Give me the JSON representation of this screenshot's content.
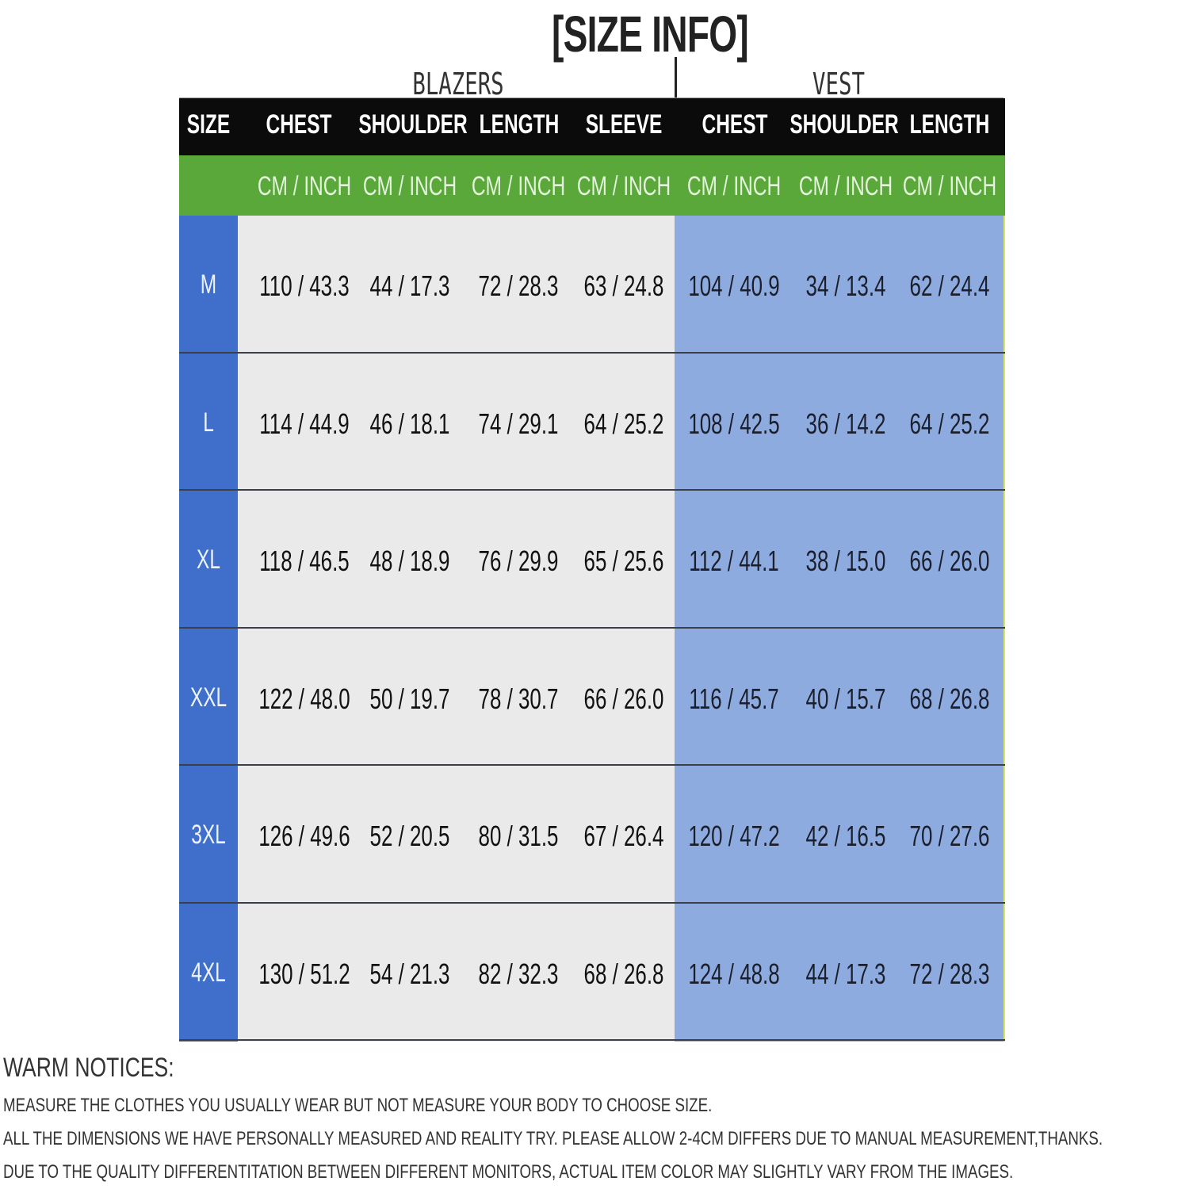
{
  "title": "[SIZE INFO]",
  "groups": {
    "blazers": "BLAZERS",
    "vest": "VEST"
  },
  "headers": [
    "SIZE",
    "CHEST",
    "SHOULDER",
    "LENGTH",
    "SLEEVE",
    "CHEST",
    "SHOULDER",
    "LENGTH"
  ],
  "units": [
    "CM  /  INCH",
    "CM  /  INCH",
    "CM  /  INCH",
    "CM  /  INCH",
    "CM  /  INCH",
    "CM  /  INCH",
    "CM  /  INCH"
  ],
  "colors": {
    "header_bg": "#0b0b0b",
    "unit_bg": "#5aa83a",
    "size_col": "#3f6fcb",
    "blazer_bg": "#ebeaea",
    "vest_bg": "#8eabe0"
  },
  "rows": [
    {
      "size": "M",
      "values": [
        "110 / 43.3",
        "44 / 17.3",
        "72 / 28.3",
        "63 / 24.8",
        "104 / 40.9",
        "34 / 13.4",
        "62 / 24.4"
      ]
    },
    {
      "size": "L",
      "values": [
        "114 / 44.9",
        "46 / 18.1",
        "74 / 29.1",
        "64 / 25.2",
        "108 / 42.5",
        "36 / 14.2",
        "64 / 25.2"
      ]
    },
    {
      "size": "XL",
      "values": [
        "118 / 46.5",
        "48 / 18.9",
        "76 / 29.9",
        "65 / 25.6",
        "112 / 44.1",
        "38 / 15.0",
        "66 / 26.0"
      ]
    },
    {
      "size": "XXL",
      "values": [
        "122 / 48.0",
        "50 / 19.7",
        "78 / 30.7",
        "66 / 26.0",
        "116 / 45.7",
        "40 / 15.7",
        "68 / 26.8"
      ]
    },
    {
      "size": "3XL",
      "values": [
        "126 / 49.6",
        "52 / 20.5",
        "80 / 31.5",
        "67 / 26.4",
        "120 / 47.2",
        "42 / 16.5",
        "70 / 27.6"
      ]
    },
    {
      "size": "4XL",
      "values": [
        "130 / 51.2",
        "54 / 21.3",
        "82 / 32.3",
        "68 / 26.8",
        "124 / 48.8",
        "44 / 17.3",
        "72 / 28.3"
      ]
    }
  ],
  "notices": {
    "title": "WARM NOTICES:",
    "lines": [
      "MEASURE THE CLOTHES YOU USUALLY WEAR BUT NOT MEASURE YOUR BODY TO CHOOSE SIZE.",
      "ALL THE DIMENSIONS WE HAVE PERSONALLY MEASURED AND REALITY TRY. PLEASE ALLOW 2-4CM DIFFERS DUE TO MANUAL MEASUREMENT,THANKS.",
      "DUE TO THE QUALITY DIFFERENTITATION BETWEEN DIFFERENT MONITORS, ACTUAL ITEM COLOR MAY SLIGHTLY VARY FROM THE IMAGES."
    ]
  }
}
